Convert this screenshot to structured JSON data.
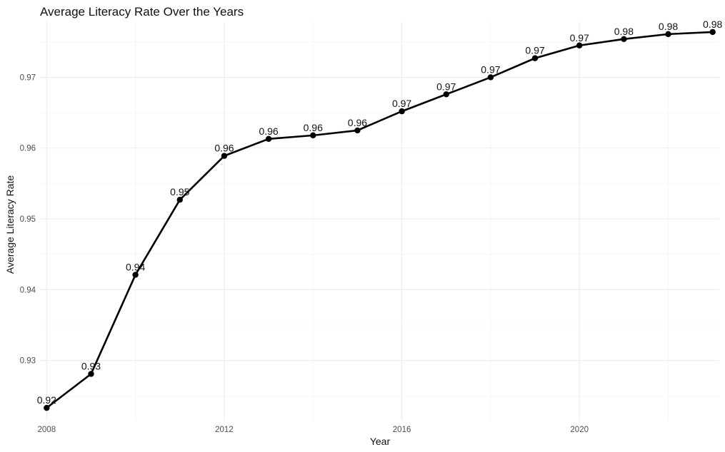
{
  "chart_data": {
    "type": "line",
    "title": "Average Literacy Rate Over the Years",
    "xlabel": "Year",
    "ylabel": "Average Literacy Rate",
    "xlim": [
      2007.85,
      2023.15
    ],
    "ylim": [
      0.9215,
      0.9779
    ],
    "x_ticks": [
      2008,
      2012,
      2016,
      2020
    ],
    "y_ticks": [
      0.93,
      0.94,
      0.95,
      0.96,
      0.97
    ],
    "y_tick_labels": [
      "0.93",
      "0.94",
      "0.95",
      "0.96",
      "0.97"
    ],
    "grid": true,
    "series": [
      {
        "x": [
          2008,
          2009,
          2010,
          2011,
          2012,
          2013,
          2014,
          2015,
          2016,
          2017,
          2018,
          2019,
          2020,
          2021,
          2022,
          2023
        ],
        "values": [
          0.9233,
          0.9281,
          0.9421,
          0.9527,
          0.9589,
          0.9613,
          0.9618,
          0.9625,
          0.9652,
          0.9676,
          0.97,
          0.9727,
          0.9745,
          0.9754,
          0.9761,
          0.9764
        ],
        "labels": [
          "0.92",
          "0.93",
          "0.94",
          "0.95",
          "0.96",
          "0.96",
          "0.96",
          "0.96",
          "0.97",
          "0.97",
          "0.97",
          "0.97",
          "0.97",
          "0.98",
          "0.98",
          "0.98"
        ]
      }
    ]
  }
}
